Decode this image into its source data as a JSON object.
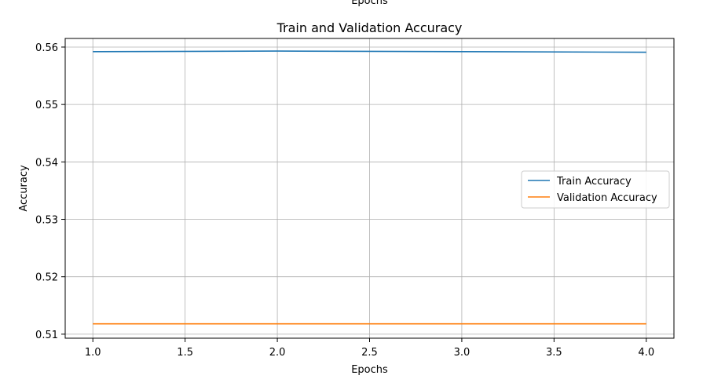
{
  "chart_data": {
    "type": "line",
    "cropped_top_text": "Epochs",
    "title": "Train and Validation Accuracy",
    "xlabel": "Epochs",
    "ylabel": "Accuracy",
    "x": [
      1.0,
      2.0,
      3.0,
      4.0
    ],
    "xlim": [
      0.85,
      4.15
    ],
    "ylim": [
      0.5093,
      0.5615
    ],
    "xticks": [
      1.0,
      1.5,
      2.0,
      2.5,
      3.0,
      3.5,
      4.0
    ],
    "xtick_labels": [
      "1.0",
      "1.5",
      "2.0",
      "2.5",
      "3.0",
      "3.5",
      "4.0"
    ],
    "yticks": [
      0.51,
      0.52,
      0.53,
      0.54,
      0.55,
      0.56
    ],
    "ytick_labels": [
      "0.51",
      "0.52",
      "0.53",
      "0.54",
      "0.55",
      "0.56"
    ],
    "grid": true,
    "legend_position": "center-right",
    "series": [
      {
        "name": "Train Accuracy",
        "color": "#1f77b4",
        "values": [
          0.5592,
          0.5593,
          0.5592,
          0.5591
        ]
      },
      {
        "name": "Validation Accuracy",
        "color": "#ff7f0e",
        "values": [
          0.5118,
          0.5118,
          0.5118,
          0.5118
        ]
      }
    ]
  }
}
